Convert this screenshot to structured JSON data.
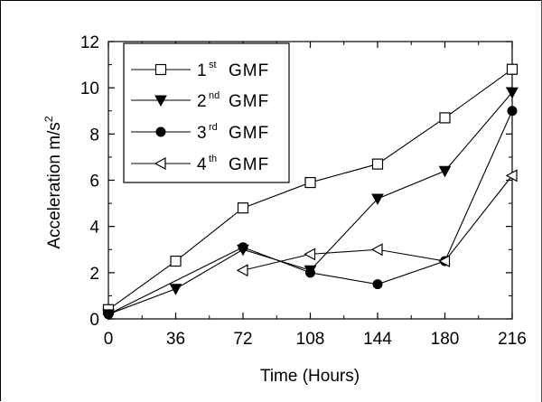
{
  "chart_data": {
    "type": "line",
    "xlabel": "Time (Hours)",
    "ylabel": "Acceleration m/s",
    "ylabel_superscript": "2",
    "x": [
      0,
      36,
      72,
      108,
      144,
      180,
      216
    ],
    "xlim": [
      0,
      216
    ],
    "ylim": [
      0,
      12
    ],
    "x_ticks": [
      "0",
      "36",
      "72",
      "108",
      "144",
      "180",
      "216"
    ],
    "y_ticks": [
      "0",
      "2",
      "4",
      "6",
      "8",
      "10",
      "12"
    ],
    "legend_position": "top-left",
    "grid": false,
    "series": [
      {
        "name": "1st GMF",
        "ordinal": "1",
        "suffix": "st",
        "label": "GMF",
        "marker": "open-square",
        "x": [
          0,
          36,
          72,
          108,
          144,
          180,
          216
        ],
        "values": [
          0.4,
          2.5,
          4.8,
          5.9,
          6.7,
          8.7,
          10.8
        ]
      },
      {
        "name": "2nd GMF",
        "ordinal": "2",
        "suffix": "nd",
        "label": "GMF",
        "marker": "filled-down-triangle",
        "x": [
          0,
          36,
          72,
          108,
          144,
          180,
          216
        ],
        "values": [
          0.2,
          1.3,
          3.0,
          2.1,
          5.2,
          6.4,
          9.8
        ]
      },
      {
        "name": "3rd GMF",
        "ordinal": "3",
        "suffix": "rd",
        "label": "GMF",
        "marker": "filled-circle",
        "x": [
          0,
          72,
          108,
          144,
          180,
          216
        ],
        "values": [
          0.2,
          3.1,
          2.0,
          1.5,
          2.5,
          9.0
        ]
      },
      {
        "name": "4th GMF",
        "ordinal": "4",
        "suffix": "th",
        "label": "GMF",
        "marker": "open-left-triangle",
        "x": [
          72,
          108,
          144,
          180,
          216
        ],
        "values": [
          2.1,
          2.8,
          3.0,
          2.5,
          6.2
        ]
      }
    ]
  }
}
